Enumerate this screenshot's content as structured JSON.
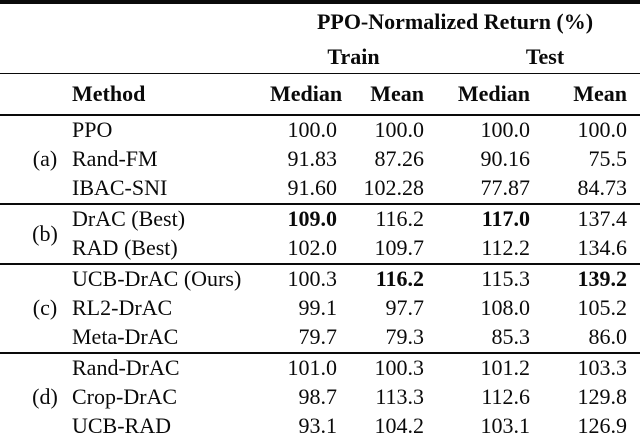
{
  "table": {
    "title": "PPO-Normalized Return (%)",
    "col_groups": {
      "train": "Train",
      "test": "Test"
    },
    "headers": {
      "method": "Method",
      "train_median": "Median",
      "train_mean": "Mean",
      "test_median": "Median",
      "test_mean": "Mean"
    },
    "groups": [
      {
        "label": "(a)",
        "rows": [
          {
            "method": "PPO",
            "values": [
              "100.0",
              "100.0",
              "100.0",
              "100.0"
            ],
            "bold": []
          },
          {
            "method": "Rand-FM",
            "values": [
              "91.83",
              "87.26",
              "90.16",
              "75.5"
            ],
            "bold": []
          },
          {
            "method": "IBAC-SNI",
            "values": [
              "91.60",
              "102.28",
              "77.87",
              "84.73"
            ],
            "bold": []
          }
        ]
      },
      {
        "label": "(b)",
        "rows": [
          {
            "method": "DrAC (Best)",
            "values": [
              "109.0",
              "116.2",
              "117.0",
              "137.4"
            ],
            "bold": [
              0,
              2
            ]
          },
          {
            "method": "RAD (Best)",
            "values": [
              "102.0",
              "109.7",
              "112.2",
              "134.6"
            ],
            "bold": []
          }
        ]
      },
      {
        "label": "(c)",
        "rows": [
          {
            "method": "UCB-DrAC (Ours)",
            "values": [
              "100.3",
              "116.2",
              "115.3",
              "139.2"
            ],
            "bold": [
              1,
              3
            ]
          },
          {
            "method": "RL2-DrAC",
            "values": [
              "99.1",
              "97.7",
              "108.0",
              "105.2"
            ],
            "bold": []
          },
          {
            "method": "Meta-DrAC",
            "values": [
              "79.7",
              "79.3",
              "85.3",
              "86.0"
            ],
            "bold": []
          }
        ]
      },
      {
        "label": "(d)",
        "rows": [
          {
            "method": "Rand-DrAC",
            "values": [
              "101.0",
              "100.3",
              "101.2",
              "103.3"
            ],
            "bold": []
          },
          {
            "method": "Crop-DrAC",
            "values": [
              "98.7",
              "113.3",
              "112.6",
              "129.8"
            ],
            "bold": []
          },
          {
            "method": "UCB-RAD",
            "values": [
              "93.1",
              "104.2",
              "103.1",
              "126.9"
            ],
            "bold": []
          }
        ]
      }
    ]
  },
  "colors": {
    "text": "#0a0a0a",
    "background": "#ffffff",
    "rule": "#0a0a0a"
  }
}
